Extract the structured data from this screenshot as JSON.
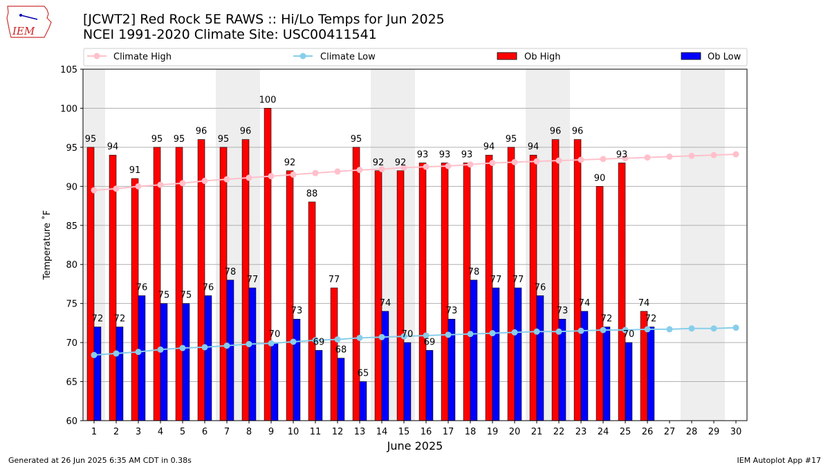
{
  "title": "[JCWT2] Red Rock 5E RAWS :: Hi/Lo Temps for Jun 2025",
  "subtitle": "NCEI 1991-2020 Climate Site: USC00411541",
  "logo_text": "IEM",
  "footer_left": "Generated at 26 Jun 2025 6:35 AM CDT in 0.38s",
  "footer_right": "IEM Autoplot App #17",
  "colors": {
    "ob_high": "#ff0000",
    "ob_low": "#0000ff",
    "climate_high": "#ffc0cb",
    "climate_low": "#87ceeb",
    "weekend_shade": "#eeeeee",
    "grid": "#b0b0b0"
  },
  "chart_data": {
    "type": "bar",
    "xlabel": "June 2025",
    "ylabel": "Temperature ˚F",
    "ylim": [
      60,
      105
    ],
    "yticks": [
      60,
      65,
      70,
      75,
      80,
      85,
      90,
      95,
      100,
      105
    ],
    "grid": "horizontal",
    "legend_placement": "top",
    "legend": [
      "Climate High",
      "Climate Low",
      "Ob High",
      "Ob Low"
    ],
    "days": [
      1,
      2,
      3,
      4,
      5,
      6,
      7,
      8,
      9,
      10,
      11,
      12,
      13,
      14,
      15,
      16,
      17,
      18,
      19,
      20,
      21,
      22,
      23,
      24,
      25,
      26,
      27,
      28,
      29,
      30
    ],
    "weekend_days": [
      1,
      7,
      8,
      14,
      15,
      21,
      22,
      28,
      29
    ],
    "ob_high": [
      95,
      94,
      91,
      95,
      95,
      96,
      95,
      96,
      100,
      92,
      88,
      77,
      95,
      92,
      92,
      93,
      93,
      93,
      94,
      95,
      94,
      96,
      96,
      90,
      93,
      74
    ],
    "ob_low": [
      72,
      72,
      76,
      75,
      75,
      76,
      78,
      77,
      70,
      73,
      69,
      68,
      65,
      74,
      70,
      69,
      73,
      78,
      77,
      77,
      76,
      73,
      74,
      72,
      70,
      72
    ],
    "climate_high": [
      89.5,
      89.7,
      90.0,
      90.2,
      90.4,
      90.7,
      90.9,
      91.1,
      91.3,
      91.5,
      91.7,
      91.9,
      92.1,
      92.2,
      92.4,
      92.5,
      92.6,
      92.8,
      93.0,
      93.1,
      93.2,
      93.3,
      93.4,
      93.5,
      93.6,
      93.7,
      93.8,
      93.9,
      94.0,
      94.1
    ],
    "climate_low": [
      68.4,
      68.6,
      68.8,
      69.1,
      69.3,
      69.4,
      69.6,
      69.8,
      69.9,
      70.1,
      70.3,
      70.4,
      70.6,
      70.7,
      70.8,
      70.9,
      71.0,
      71.1,
      71.2,
      71.3,
      71.4,
      71.4,
      71.5,
      71.6,
      71.6,
      71.7,
      71.7,
      71.8,
      71.8,
      71.9
    ]
  }
}
